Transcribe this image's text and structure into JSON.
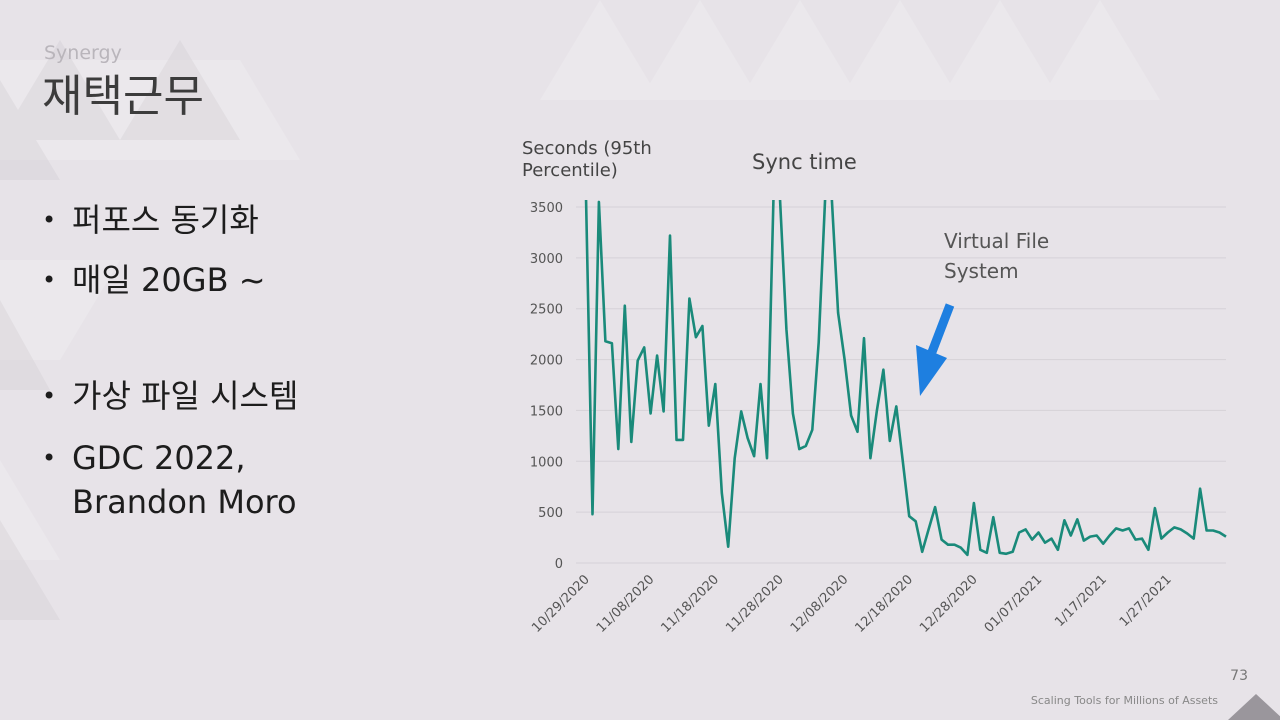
{
  "header": {
    "subtitle": "Synergy",
    "title": "재택근무"
  },
  "bullets": [
    "퍼포스 동기화",
    "매일 20GB ~",
    "가상 파일 시스템",
    "GDC 2022,\nBrandon Moro"
  ],
  "page_number": "73",
  "footer_text": "Scaling Tools for Millions of Assets",
  "colors": {
    "line": "#1a8a7a",
    "arrow": "#1e7fe0",
    "grid": "#d6d2d7"
  },
  "annotation": "Virtual File\nSystem",
  "chart_data": {
    "type": "line",
    "title": "Sync time",
    "ylabel": "Seconds (95th Percentile)",
    "xlabel": "",
    "ylim": [
      0,
      3500
    ],
    "yticks": [
      0,
      500,
      1000,
      1500,
      2000,
      2500,
      3000,
      3500
    ],
    "x_tick_labels": [
      "10/29/2020",
      "11/08/2020",
      "11/18/2020",
      "11/28/2020",
      "12/08/2020",
      "12/18/2020",
      "12/28/2020",
      "01/07/2021",
      "1/17/2021",
      "1/27/2021"
    ],
    "x_tick_index": [
      0,
      10,
      20,
      30,
      40,
      50,
      60,
      70,
      80,
      90
    ],
    "grid": true,
    "series": [
      {
        "values": [
          3600,
          480,
          3550,
          2180,
          2160,
          1120,
          2530,
          1190,
          1990,
          2120,
          1470,
          2040,
          1490,
          3220,
          1210,
          1210,
          2600,
          2220,
          2330,
          1350,
          1760,
          690,
          160,
          1030,
          1490,
          1230,
          1050,
          1760,
          1030,
          3600,
          3600,
          2300,
          1470,
          1120,
          1150,
          1310,
          2170,
          3600,
          3600,
          2460,
          2000,
          1450,
          1290,
          2210,
          1030,
          1500,
          1900,
          1200,
          1540,
          1000,
          460,
          410,
          110,
          330,
          550,
          230,
          180,
          180,
          150,
          80,
          590,
          130,
          100,
          450,
          100,
          90,
          110,
          300,
          330,
          230,
          300,
          200,
          240,
          130,
          420,
          270,
          430,
          220,
          260,
          270,
          190,
          270,
          340,
          320,
          340,
          230,
          240,
          130,
          540,
          240,
          300,
          350,
          330,
          290,
          240,
          730,
          320,
          320,
          300,
          260
        ]
      }
    ]
  }
}
